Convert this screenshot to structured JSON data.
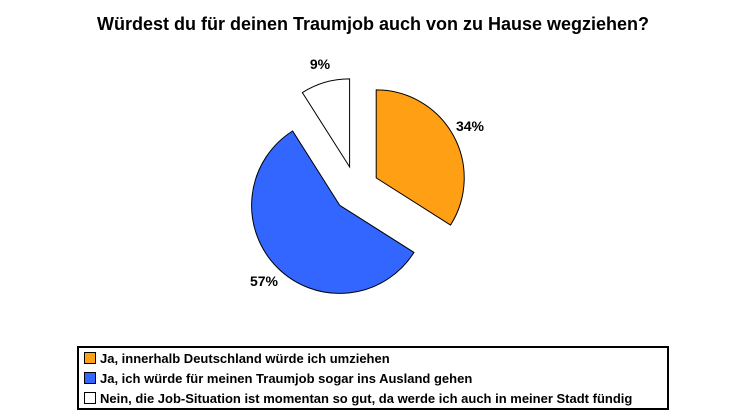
{
  "title": "Würdest du für deinen Traumjob auch von zu Hause wegziehen?",
  "chart_data": {
    "type": "pie",
    "title": "Würdest du für deinen Traumjob auch von zu Hause wegziehen?",
    "unit": "%",
    "direction": "clockwise",
    "start_angle_deg": 0,
    "exploded": true,
    "legend_position": "bottom",
    "outline_color": "#000000",
    "background_color": "#FFFFFF",
    "slices": [
      {
        "label": "Ja, innerhalb Deutschland würde ich umziehen",
        "value": 34,
        "display": "34%",
        "color": "#FFA014"
      },
      {
        "label": "Ja, ich würde für meinen Traumjob sogar ins Ausland gehen",
        "value": 57,
        "display": "57%",
        "color": "#3366FF"
      },
      {
        "label": "Nein, die Job-Situation ist momentan so gut, da werde ich auch in meiner Stadt fündig",
        "value": 9,
        "display": "9%",
        "color": "#FFFFFF"
      }
    ]
  }
}
